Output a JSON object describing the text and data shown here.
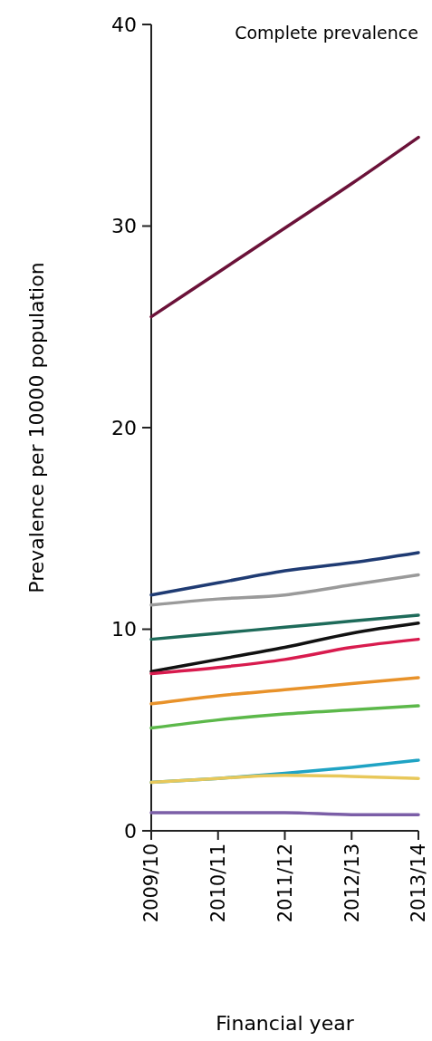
{
  "chart_data": {
    "type": "line",
    "title": "Complete prevalence",
    "xlabel": "Financial year",
    "ylabel": "Prevalence per 10000 population",
    "categories": [
      "2009/10",
      "2010/11",
      "2011/12",
      "2012/13",
      "2013/14"
    ],
    "ylim": [
      0,
      40
    ],
    "yticks": [
      0,
      10,
      20,
      30,
      40
    ],
    "grid": false,
    "marker": "none",
    "line_style": "solid",
    "series": [
      {
        "color": "#6b1239",
        "values": [
          25.5,
          27.7,
          29.9,
          32.1,
          34.4
        ]
      },
      {
        "color": "#1f3b73",
        "values": [
          11.7,
          12.3,
          12.9,
          13.3,
          13.8
        ]
      },
      {
        "color": "#9a9a9a",
        "values": [
          11.2,
          11.5,
          11.7,
          12.2,
          12.7
        ]
      },
      {
        "color": "#1e6b5a",
        "values": [
          9.5,
          9.8,
          10.1,
          10.4,
          10.7
        ]
      },
      {
        "color": "#111111",
        "values": [
          7.9,
          8.5,
          9.1,
          9.8,
          10.3
        ]
      },
      {
        "color": "#d81b4e",
        "values": [
          7.8,
          8.1,
          8.5,
          9.1,
          9.5
        ]
      },
      {
        "color": "#e8922a",
        "values": [
          6.3,
          6.7,
          7.0,
          7.3,
          7.6
        ]
      },
      {
        "color": "#5cb84a",
        "values": [
          5.1,
          5.5,
          5.8,
          6.0,
          6.2
        ]
      },
      {
        "color": "#1fa3c4",
        "values": [
          2.4,
          2.6,
          2.85,
          3.15,
          3.5
        ]
      },
      {
        "color": "#e8c85a",
        "values": [
          2.4,
          2.6,
          2.75,
          2.7,
          2.6
        ]
      },
      {
        "color": "#7b5ea7",
        "values": [
          0.9,
          0.9,
          0.9,
          0.8,
          0.8
        ]
      }
    ]
  }
}
